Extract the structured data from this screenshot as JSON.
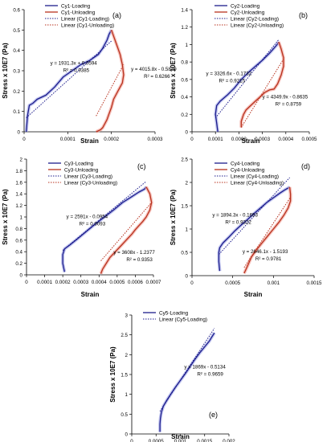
{
  "colors": {
    "loading": "#1c1c8c",
    "unloading": "#b8321e",
    "loading_halo": "#a8aee8",
    "unloading_halo": "#f2a8a0"
  },
  "chart_data": [
    {
      "type": "line",
      "panel_label": "(a)",
      "xlabel": "Strain",
      "ylabel": "Stress x 10E7 (Pa)",
      "xlim": [
        0,
        0.0003
      ],
      "ylim": [
        0,
        0.6
      ],
      "x_ticks": [
        "0",
        "0.0001",
        "0.0002",
        "0.0003"
      ],
      "y_ticks": [
        "0",
        "0.1",
        "0.2",
        "0.3",
        "0.4",
        "0.5",
        "0.6"
      ],
      "series": [
        {
          "name": "Cy1-Loading",
          "kind": "loading",
          "x": [
            5e-06,
            8e-06,
            1.2e-05,
            2e-05,
            3e-05,
            5e-05,
            7e-05,
            9e-05,
            0.00011,
            0.00013,
            0.00015,
            0.00017,
            0.00018,
            0.00019,
            0.000195,
            0.0002
          ],
          "y": [
            0.0,
            0.08,
            0.13,
            0.14,
            0.16,
            0.18,
            0.22,
            0.27,
            0.3,
            0.33,
            0.35,
            0.38,
            0.41,
            0.45,
            0.48,
            0.5
          ]
        },
        {
          "name": "Cy1-Unloading",
          "kind": "unloading",
          "x": [
            0.0002,
            0.00021,
            0.00022,
            0.000225,
            0.000228,
            0.000225,
            0.000215,
            0.000205,
            0.0002,
            0.000195,
            0.00019,
            0.000185,
            0.00018,
            0.000175,
            0.00017,
            0.000165
          ],
          "y": [
            0.5,
            0.44,
            0.38,
            0.33,
            0.28,
            0.24,
            0.2,
            0.16,
            0.12,
            0.09,
            0.06,
            0.04,
            0.02,
            0.01,
            0.005,
            0.0
          ]
        },
        {
          "name": "Linear (Cy1-Loading)",
          "kind": "fit",
          "of": "loading",
          "slope": 1931.3,
          "intercept": 0.0594,
          "x_range": [
            5e-06,
            0.0002
          ]
        },
        {
          "name": "Linear (Cy1-Unloading)",
          "kind": "fit",
          "of": "unloading",
          "slope": 4015.8,
          "intercept": -0.5849,
          "x_range": [
            0.000165,
            0.000228
          ]
        }
      ],
      "annotations": [
        {
          "text": "y = 1931.3x + 0.0594",
          "R2": "R² = 0.9385",
          "at": [
            6e-05,
            0.33
          ]
        },
        {
          "text": "y = 4015.8x - 0.5849",
          "R2": "R² = 0.6266",
          "at": [
            0.000245,
            0.3
          ]
        }
      ]
    },
    {
      "type": "line",
      "panel_label": "(b)",
      "xlabel": "Strain",
      "ylabel": "Stress x 10E7 (Pa)",
      "xlim": [
        0,
        0.0005
      ],
      "ylim": [
        0,
        1.4
      ],
      "x_ticks": [
        "0",
        "0.0001",
        "0.0002",
        "0.0003",
        "0.0004",
        "0.0005"
      ],
      "y_ticks": [
        "0",
        "0.2",
        "0.4",
        "0.6",
        "0.8",
        "1",
        "1.2",
        "1.4"
      ],
      "series": [
        {
          "name": "Cy2-Loading",
          "kind": "loading",
          "x": [
            0.00011,
            0.000105,
            0.0001,
            0.000105,
            0.00012,
            0.00015,
            0.00018,
            0.00021,
            0.00024,
            0.00027,
            0.0003,
            0.00033,
            0.00035,
            0.00036,
            0.00037
          ],
          "y": [
            0.0,
            0.1,
            0.2,
            0.3,
            0.35,
            0.42,
            0.5,
            0.6,
            0.68,
            0.75,
            0.82,
            0.9,
            0.96,
            0.99,
            1.03
          ]
        },
        {
          "name": "Cy2-Unloading",
          "kind": "unloading",
          "x": [
            0.00037,
            0.00038,
            0.00039,
            0.00039,
            0.00038,
            0.000365,
            0.00035,
            0.00033,
            0.00031,
            0.00029,
            0.00027,
            0.00025,
            0.00023,
            0.00022,
            0.00021,
            0.00021
          ],
          "y": [
            1.03,
            0.95,
            0.85,
            0.75,
            0.65,
            0.55,
            0.49,
            0.48,
            0.45,
            0.4,
            0.35,
            0.3,
            0.25,
            0.2,
            0.12,
            0.05
          ]
        },
        {
          "name": "Linear (Cy2-Loading)",
          "kind": "fit",
          "of": "loading",
          "slope": 3326.6,
          "intercept": -0.1732,
          "x_range": [
            0.0001,
            0.00037
          ]
        },
        {
          "name": "Linear (Cy2-Unloading)",
          "kind": "fit",
          "of": "unloading",
          "slope": 4349.9,
          "intercept": -0.8635,
          "x_range": [
            0.00021,
            0.00039
          ]
        }
      ],
      "annotations": [
        {
          "text": "y = 3326.6x - 0.1732",
          "R2": "R² = 0.9215",
          "at": [
            6e-05,
            0.65
          ]
        },
        {
          "text": "y = 4349.9x - 0.8635",
          "R2": "R² = 0.8759",
          "at": [
            0.0003,
            0.38
          ]
        }
      ]
    },
    {
      "type": "line",
      "panel_label": "(c)",
      "xlabel": "Strain",
      "ylabel": "Stress x 10E7 (Pa)",
      "xlim": [
        0,
        0.0007
      ],
      "ylim": [
        0,
        2
      ],
      "x_ticks": [
        "0",
        "0.0001",
        "0.0002",
        "0.0003",
        "0.0004",
        "0.0005",
        "0.0006",
        "0.0007"
      ],
      "y_ticks": [
        "0",
        "0.2",
        "0.4",
        "0.6",
        "0.8",
        "1",
        "1.2",
        "1.4",
        "1.6",
        "1.8",
        "2"
      ],
      "series": [
        {
          "name": "Cy3-Loading",
          "kind": "loading",
          "x": [
            0.00021,
            0.000205,
            0.0002,
            0.0002,
            0.00021,
            0.00024,
            0.00028,
            0.00033,
            0.00038,
            0.00043,
            0.00048,
            0.00053,
            0.00058,
            0.00062,
            0.00065,
            0.00066
          ],
          "y": [
            0.05,
            0.12,
            0.2,
            0.35,
            0.45,
            0.52,
            0.62,
            0.75,
            0.88,
            1.0,
            1.12,
            1.25,
            1.35,
            1.43,
            1.48,
            1.52
          ]
        },
        {
          "name": "Cy3-Unloading",
          "kind": "unloading",
          "x": [
            0.00066,
            0.00068,
            0.00069,
            0.00068,
            0.00066,
            0.00064,
            0.00062,
            0.0006,
            0.00058,
            0.00055,
            0.00052,
            0.00049,
            0.00046,
            0.00044,
            0.00042,
            0.00041
          ],
          "y": [
            1.52,
            1.4,
            1.25,
            1.12,
            1.0,
            0.92,
            0.85,
            0.78,
            0.7,
            0.6,
            0.5,
            0.4,
            0.3,
            0.2,
            0.1,
            0.02
          ]
        },
        {
          "name": "Linear (Cy3-Loading)",
          "kind": "fit",
          "of": "loading",
          "slope": 2591,
          "intercept": -0.0954,
          "x_range": [
            0.0002,
            0.00066
          ]
        },
        {
          "name": "Linear (Cy3-Unloading)",
          "kind": "fit",
          "of": "unloading",
          "slope": 3608,
          "intercept": -1.2377,
          "x_range": [
            0.00041,
            0.00069
          ]
        }
      ],
      "annotations": [
        {
          "text": "y = 2591x - 0.0954",
          "R2": "R² = 0.9093",
          "at": [
            0.00022,
            0.98
          ]
        },
        {
          "text": "y = 3608x - 1.2377",
          "R2": "R² = 0.9353",
          "at": [
            0.00048,
            0.36
          ]
        }
      ]
    },
    {
      "type": "line",
      "panel_label": "(d)",
      "xlabel": "Strain",
      "ylabel": "Stress x 10E7 (Pa)",
      "xlim": [
        0,
        0.0015
      ],
      "ylim": [
        0,
        2.5
      ],
      "x_ticks": [
        "0",
        "0.0005",
        "0.001",
        "0.0015"
      ],
      "y_ticks": [
        "0",
        "0.5",
        "1",
        "1.5",
        "2",
        "2.5"
      ],
      "series": [
        {
          "name": "Cy4-Loading",
          "kind": "loading",
          "x": [
            0.00034,
            0.00033,
            0.00033,
            0.00034,
            0.00038,
            0.00045,
            0.00052,
            0.0006,
            0.00068,
            0.00076,
            0.00084,
            0.00092,
            0.001,
            0.00108,
            0.00114,
            0.00118,
            0.0012
          ],
          "y": [
            0.1,
            0.3,
            0.5,
            0.6,
            0.7,
            0.82,
            0.95,
            1.08,
            1.2,
            1.33,
            1.45,
            1.57,
            1.67,
            1.77,
            1.84,
            1.88,
            1.9
          ]
        },
        {
          "name": "Cy4-Unloading",
          "kind": "unloading",
          "x": [
            0.0012,
            0.00121,
            0.00121,
            0.00118,
            0.00113,
            0.00107,
            0.001,
            0.00093,
            0.00086,
            0.00079,
            0.00073,
            0.00068,
            0.00064
          ],
          "y": [
            1.9,
            1.75,
            1.6,
            1.45,
            1.3,
            1.15,
            1.0,
            0.85,
            0.7,
            0.55,
            0.4,
            0.2,
            0.05
          ]
        },
        {
          "name": "Linear (Cy4-Loading)",
          "kind": "fit",
          "of": "loading",
          "slope": 1894.3,
          "intercept": -0.1693,
          "x_range": [
            0.00033,
            0.0012
          ]
        },
        {
          "name": "Linear (Cy4-Unloading)",
          "kind": "fit",
          "of": "unloading",
          "slope": 2646.1,
          "intercept": -1.5193,
          "x_range": [
            0.00064,
            0.00121
          ]
        }
      ],
      "annotations": [
        {
          "text": "y = 1894.3x - 0.1693",
          "R2": "R² = 0.9322",
          "at": [
            0.00025,
            1.27
          ]
        },
        {
          "text": "y = 2646.1x - 1.5193",
          "R2": "R² = 0.9781",
          "at": [
            0.00062,
            0.48
          ]
        }
      ]
    },
    {
      "type": "line",
      "panel_label": "(e)",
      "xlabel": "Strain",
      "ylabel": "Stress x 10E7 (Pa)",
      "xlim": [
        0,
        0.002
      ],
      "ylim": [
        0,
        3
      ],
      "x_ticks": [
        "0",
        "0.0005",
        "0.001",
        "0.0015",
        "0.002"
      ],
      "y_ticks": [
        "0",
        "0.5",
        "1",
        "1.5",
        "2",
        "2.5",
        "3"
      ],
      "series": [
        {
          "name": "Cy5-Loading",
          "kind": "loading",
          "x": [
            0.00058,
            0.00058,
            0.00059,
            0.00061,
            0.00065,
            0.00072,
            0.0008,
            0.0009,
            0.001,
            0.0011,
            0.0012,
            0.0013,
            0.0014,
            0.0015,
            0.0016,
            0.00165,
            0.0017
          ],
          "y": [
            0.05,
            0.25,
            0.4,
            0.55,
            0.7,
            0.85,
            1.0,
            1.18,
            1.35,
            1.52,
            1.7,
            1.88,
            2.05,
            2.2,
            2.35,
            2.45,
            2.55
          ]
        },
        {
          "name": "Linear (Cy5-Loading)",
          "kind": "fit",
          "of": "loading",
          "slope": 1869,
          "intercept": -0.5134,
          "x_range": [
            0.00058,
            0.0017
          ]
        }
      ],
      "annotations": [
        {
          "text": "y = 1869x - 0.5134",
          "R2": "R² = 0.9659",
          "at": [
            0.00108,
            1.65
          ]
        }
      ]
    }
  ]
}
